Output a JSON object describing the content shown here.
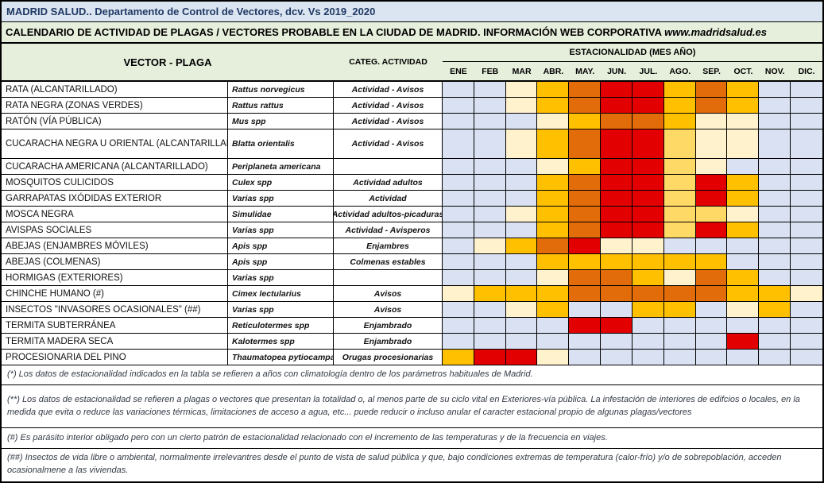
{
  "title_bar": {
    "text": "MADRID SALUD.. Departamento de Control de Vectores, dcv. Vs 2019_2020"
  },
  "subtitle_bar": {
    "text": "CALENDARIO DE ACTIVIDAD DE PLAGAS / VECTORES PROBABLE EN LA CIUDAD DE MADRID. INFORMACIÓN WEB CORPORATIVA ",
    "link_text": "www.madridsalud.es"
  },
  "header": {
    "vector_col": "VECTOR - PLAGA",
    "category_col": "CATEG. ACTIVIDAD",
    "season_col": "ESTACIONALIDAD (MES AÑO)",
    "months": [
      "ENE",
      "FEB",
      "MAR",
      "ABR.",
      "MAY.",
      "JUN.",
      "JUL.",
      "AGO.",
      "SEP.",
      "OCT.",
      "NOV.",
      "DIC."
    ]
  },
  "legend_colors": {
    "B": "#d9e1f2",
    "C": "#fff2cc",
    "LG": "#ffd966",
    "G": "#ffc000",
    "O": "#e26b0a",
    "R": "#e30000"
  },
  "rows": [
    {
      "name": "RATA (ALCANTARILLADO)",
      "species": "Rattus norvegicus",
      "category": "Actividad - Avisos",
      "months": [
        "B",
        "B",
        "C",
        "G",
        "O",
        "R",
        "R",
        "G",
        "O",
        "G",
        "B",
        "B"
      ]
    },
    {
      "name": "RATA NEGRA (ZONAS VERDES)",
      "species": "Rattus rattus",
      "category": "Actividad - Avisos",
      "months": [
        "B",
        "B",
        "C",
        "G",
        "O",
        "R",
        "R",
        "G",
        "O",
        "G",
        "B",
        "B"
      ]
    },
    {
      "name": "RATÓN (VÍA PÚBLICA)",
      "species": "Mus spp",
      "category": "Actividad - Avisos",
      "months": [
        "B",
        "B",
        "B",
        "C",
        "G",
        "O",
        "O",
        "G",
        "C",
        "C",
        "B",
        "B"
      ]
    },
    {
      "name": "CUCARACHA NEGRA U ORIENTAL (ALCANTARILLADO)",
      "species": "Blatta orientalis",
      "category": "Actividad - Avisos",
      "months": [
        "B",
        "B",
        "C",
        "G",
        "O",
        "R",
        "R",
        "LG",
        "C",
        "C",
        "B",
        "B"
      ]
    },
    {
      "name": "CUCARACHA AMERICANA (ALCANTARILLADO)",
      "species": "Periplaneta americana",
      "category": "",
      "months": [
        "B",
        "B",
        "B",
        "C",
        "G",
        "R",
        "R",
        "LG",
        "C",
        "B",
        "B",
        "B"
      ]
    },
    {
      "name": "MOSQUITOS CULICIDOS",
      "species": "Culex spp",
      "category": "Actividad adultos",
      "months": [
        "B",
        "B",
        "B",
        "G",
        "O",
        "R",
        "R",
        "LG",
        "R",
        "G",
        "B",
        "B"
      ]
    },
    {
      "name": "GARRAPATAS IXÓDIDAS EXTERIOR",
      "species": "Varias spp",
      "category": "Actividad",
      "months": [
        "B",
        "B",
        "B",
        "G",
        "O",
        "R",
        "R",
        "LG",
        "R",
        "G",
        "B",
        "B"
      ]
    },
    {
      "name": "MOSCA NEGRA",
      "species": "Simulidae",
      "category": "Actividad adultos-picaduras",
      "months": [
        "B",
        "B",
        "C",
        "G",
        "O",
        "R",
        "R",
        "LG",
        "LG",
        "C",
        "B",
        "B"
      ]
    },
    {
      "name": "AVISPAS SOCIALES",
      "species": "Varias spp",
      "category": "Actividad - Avisperos",
      "months": [
        "B",
        "B",
        "B",
        "G",
        "O",
        "R",
        "R",
        "LG",
        "R",
        "G",
        "B",
        "B"
      ]
    },
    {
      "name": "ABEJAS (ENJAMBRES MÓVILES)",
      "species": "Apis spp",
      "category": "Enjambres",
      "months": [
        "B",
        "C",
        "G",
        "O",
        "R",
        "C",
        "C",
        "B",
        "B",
        "B",
        "B",
        "B"
      ]
    },
    {
      "name": "ABEJAS (COLMENAS)",
      "species": "Apis spp",
      "category": "Colmenas estables",
      "months": [
        "B",
        "B",
        "B",
        "G",
        "G",
        "G",
        "G",
        "G",
        "G",
        "B",
        "B",
        "B"
      ]
    },
    {
      "name": "HORMIGAS (EXTERIORES)",
      "species": "Varias spp",
      "category": "",
      "months": [
        "B",
        "B",
        "B",
        "C",
        "O",
        "O",
        "G",
        "C",
        "O",
        "G",
        "B",
        "B"
      ]
    },
    {
      "name": "CHINCHE HUMANO (#)",
      "species": "Cimex lectularius",
      "category": "Avisos",
      "months": [
        "C",
        "G",
        "G",
        "G",
        "O",
        "O",
        "O",
        "O",
        "O",
        "G",
        "G",
        "C"
      ]
    },
    {
      "name": "INSECTOS \"INVASORES OCASIONALES\" (##)",
      "species": "Varias spp",
      "category": "Avisos",
      "months": [
        "B",
        "B",
        "C",
        "G",
        "B",
        "B",
        "G",
        "G",
        "B",
        "C",
        "G",
        "B"
      ]
    },
    {
      "name": "TERMITA SUBTERRÁNEA",
      "species": "Reticulotermes spp",
      "category": "Enjambrado",
      "months": [
        "B",
        "B",
        "B",
        "B",
        "R",
        "R",
        "B",
        "B",
        "B",
        "B",
        "B",
        "B"
      ]
    },
    {
      "name": "TERMITA MADERA SECA",
      "species": "Kalotermes spp",
      "category": "Enjambrado",
      "months": [
        "B",
        "B",
        "B",
        "B",
        "B",
        "B",
        "B",
        "B",
        "B",
        "R",
        "B",
        "B"
      ]
    },
    {
      "name": "PROCESIONARIA DEL PINO",
      "species": "Thaumatopea pytiocampa",
      "category": "Orugas procesionarias",
      "months": [
        "G",
        "R",
        "R",
        "C",
        "B",
        "B",
        "B",
        "B",
        "B",
        "B",
        "B",
        "B"
      ]
    }
  ],
  "notes": [
    "(*) Los datos de estacionalidad indicados en la tabla se refieren a años con climatología dentro de los parámetros habituales de Madrid.",
    "(**)  Los datos de estacionalidad se refieren a plagas o vectores que presentan la totalidad o, al menos parte de su ciclo vital en Exteriores-vía pública. La infestación de interiores de edifcios o locales, en la medida que evita o reduce las variaciones térmicas, limitaciones de acceso a agua, etc... puede reducir o incluso anular el caracter estacional propio de algunas plagas/vectores",
    "(#)  Es parásito interior obligado pero con un cierto patrón de estacionalidad relacionado con el incremento de las temperaturas y de la frecuencia en viajes.",
    "(##)  Insectos de vida libre o ambiental, normalmente irrelevantres desde el punto de vista de salud pública y que, bajo condiciones extremas de temperatura (calor-frío) y/o de sobrepoblación, acceden ocasionalmene a las viviendas."
  ]
}
